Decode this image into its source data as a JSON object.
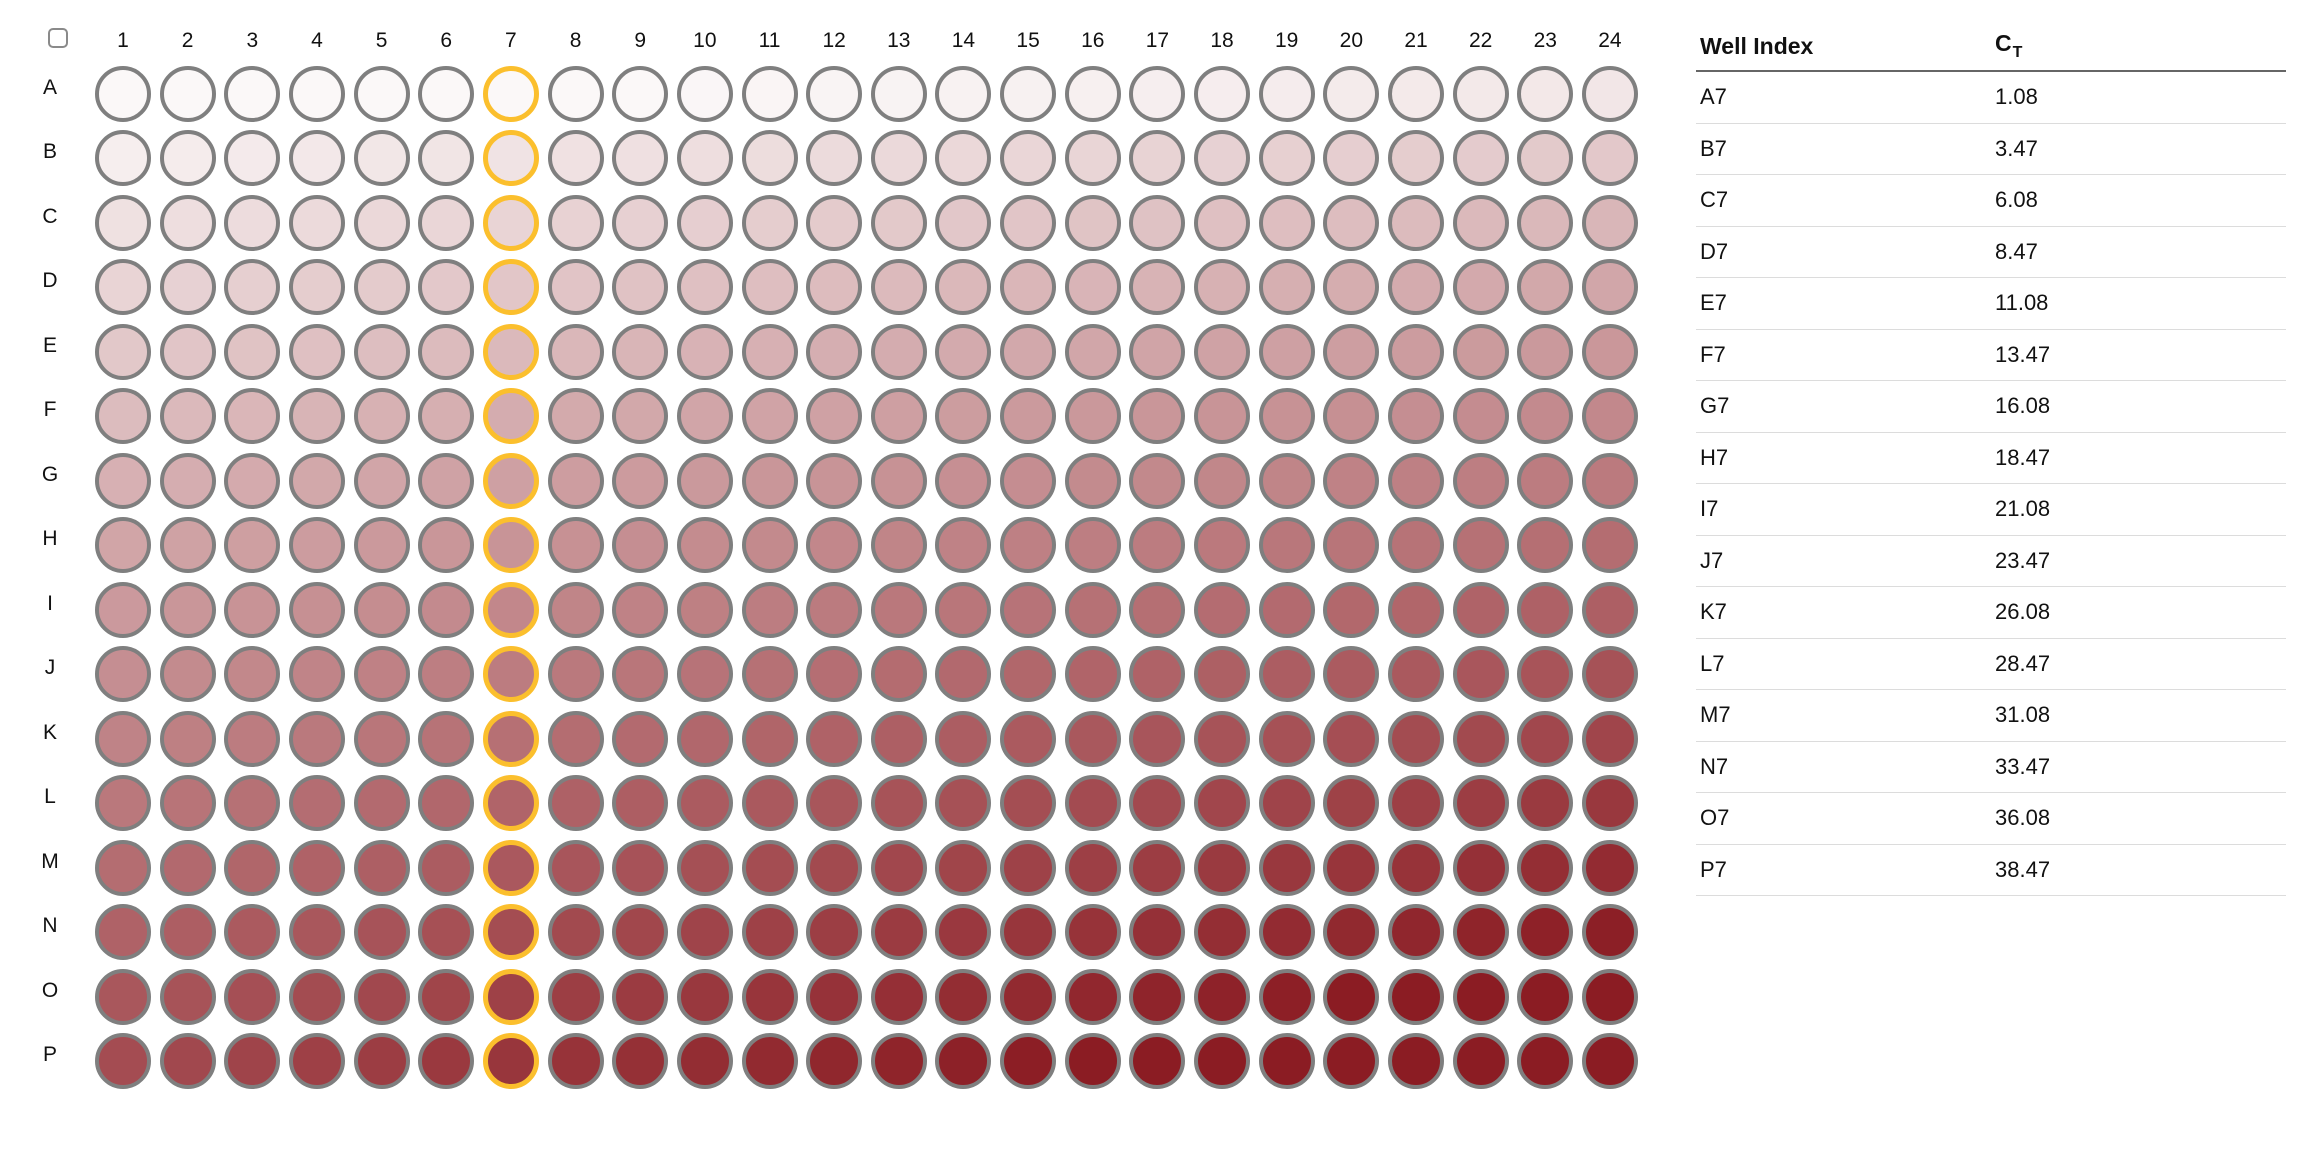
{
  "plate": {
    "select_all_checkbox": {
      "checked": false
    },
    "columns": [
      "1",
      "2",
      "3",
      "4",
      "5",
      "6",
      "7",
      "8",
      "9",
      "10",
      "11",
      "12",
      "13",
      "14",
      "15",
      "16",
      "17",
      "18",
      "19",
      "20",
      "21",
      "22",
      "23",
      "24"
    ],
    "rows": [
      "A",
      "B",
      "C",
      "D",
      "E",
      "F",
      "G",
      "H",
      "I",
      "J",
      "K",
      "L",
      "M",
      "N",
      "O",
      "P"
    ],
    "selected_column": "7",
    "colors": {
      "well_border": "#7f7f7f",
      "selected_border": "#fbbf2d",
      "fill_light": "#fbf8f8",
      "fill_dark": "#8b1c23"
    },
    "intensity_note": "Well fill darkens top-to-bottom and left-to-right"
  },
  "results_table": {
    "headers": {
      "well_index": "Well Index",
      "ct_main": "C",
      "ct_sub": "T"
    },
    "rows": [
      {
        "well": "A7",
        "ct": "1.08"
      },
      {
        "well": "B7",
        "ct": "3.47"
      },
      {
        "well": "C7",
        "ct": "6.08"
      },
      {
        "well": "D7",
        "ct": "8.47"
      },
      {
        "well": "E7",
        "ct": "11.08"
      },
      {
        "well": "F7",
        "ct": "13.47"
      },
      {
        "well": "G7",
        "ct": "16.08"
      },
      {
        "well": "H7",
        "ct": "18.47"
      },
      {
        "well": "I7",
        "ct": "21.08"
      },
      {
        "well": "J7",
        "ct": "23.47"
      },
      {
        "well": "K7",
        "ct": "26.08"
      },
      {
        "well": "L7",
        "ct": "28.47"
      },
      {
        "well": "M7",
        "ct": "31.08"
      },
      {
        "well": "N7",
        "ct": "33.47"
      },
      {
        "well": "O7",
        "ct": "36.08"
      },
      {
        "well": "P7",
        "ct": "38.47"
      }
    ]
  }
}
